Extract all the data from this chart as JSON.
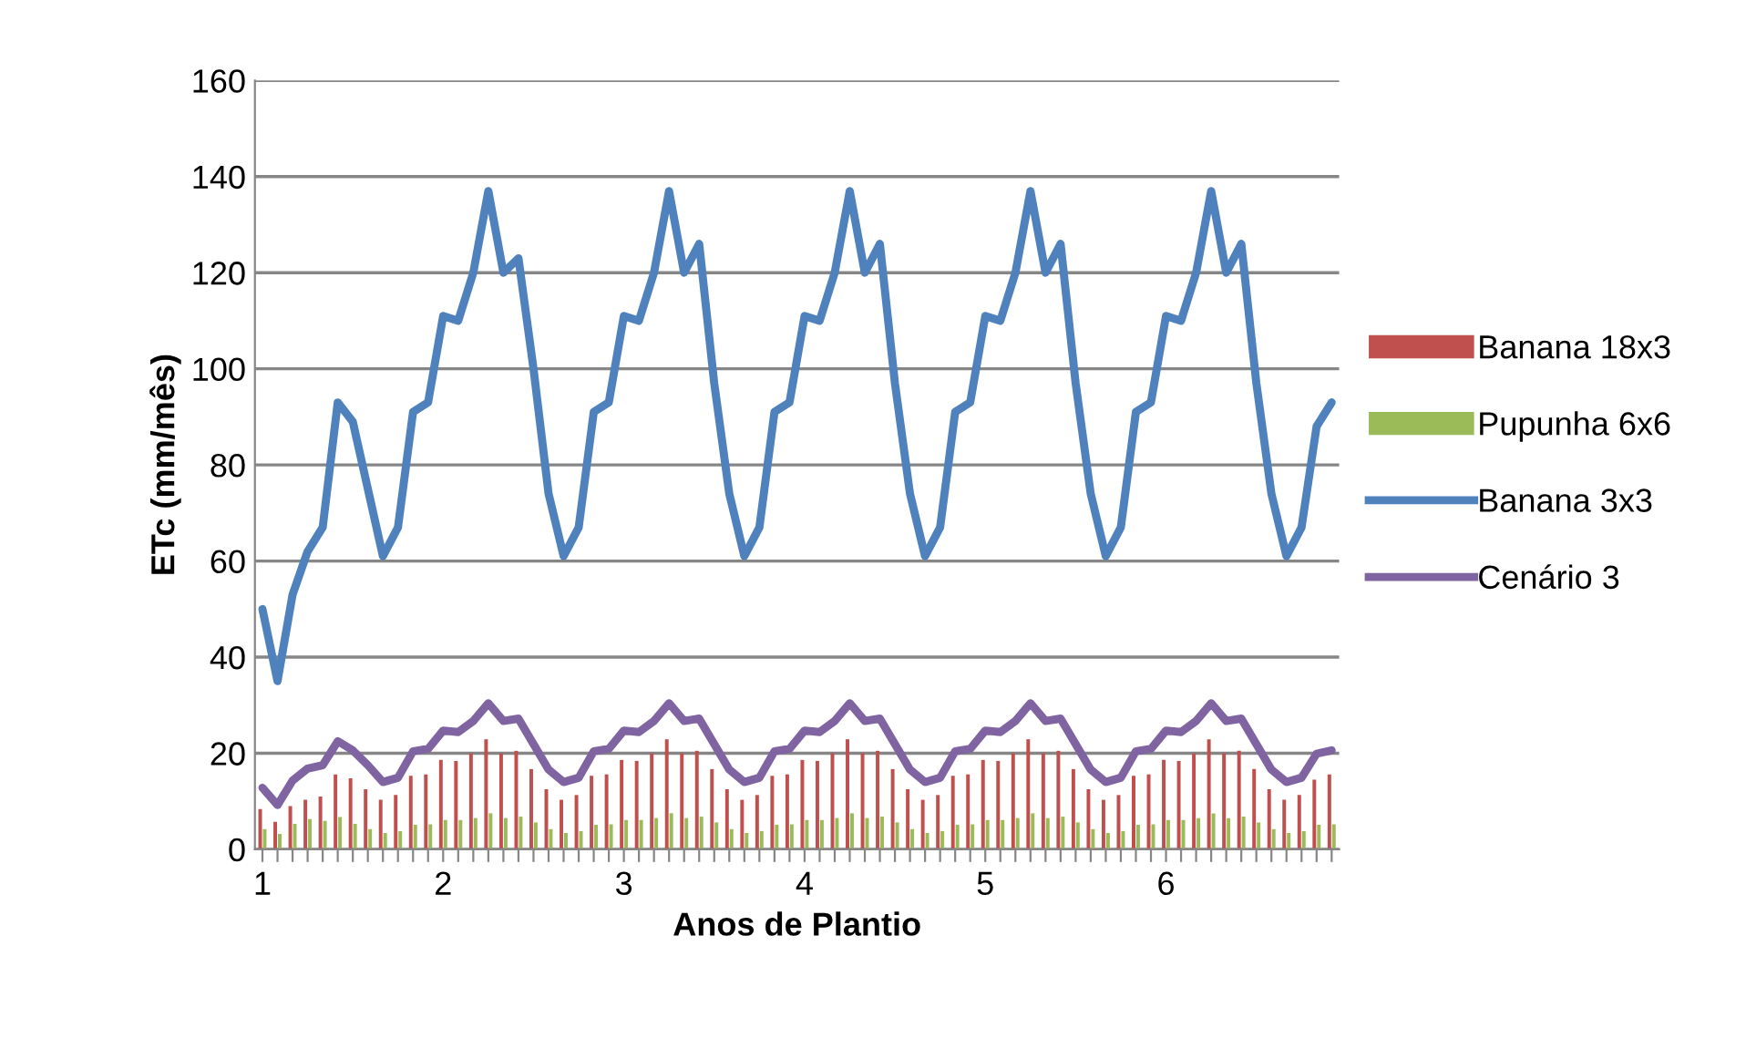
{
  "chart_data": {
    "type": "bar",
    "xlabel": "Anos de Plantio",
    "ylabel": "ETc (mm/mês)",
    "categories": [
      "1",
      null,
      null,
      null,
      null,
      null,
      null,
      null,
      null,
      null,
      null,
      null,
      "2",
      null,
      null,
      null,
      null,
      null,
      null,
      null,
      null,
      null,
      null,
      null,
      "3",
      null,
      null,
      null,
      null,
      null,
      null,
      null,
      null,
      null,
      null,
      null,
      "4",
      null,
      null,
      null,
      null,
      null,
      null,
      null,
      null,
      null,
      null,
      null,
      "5",
      null,
      null,
      null,
      null,
      null,
      null,
      null,
      null,
      null,
      null,
      null,
      "6",
      null,
      null,
      null,
      null,
      null,
      null,
      null,
      null,
      null,
      null,
      null
    ],
    "ylim": [
      0,
      160
    ],
    "yticks": [
      0,
      20,
      40,
      60,
      80,
      100,
      120,
      140,
      160
    ],
    "grid": "y",
    "legend": "right",
    "series": [
      {
        "name": "Banana 18x3",
        "color": "#c0504d",
        "values": [
          8.4,
          5.7,
          9,
          10.3,
          11,
          15.6,
          14.8,
          12.5,
          10.3,
          11.3,
          15.3,
          15.6,
          18.6,
          18.4,
          20,
          22.9,
          20,
          20.5,
          16.7,
          12.5,
          10.3,
          11.3,
          15.3,
          15.6,
          18.6,
          18.4,
          20,
          22.9,
          20,
          20.5,
          16.7,
          12.5,
          10.3,
          11.3,
          15.3,
          15.6,
          18.6,
          18.4,
          20,
          22.9,
          20,
          20.5,
          16.7,
          12.5,
          10.3,
          11.3,
          15.3,
          15.6,
          18.6,
          18.4,
          20,
          22.9,
          20,
          20.5,
          16.7,
          12.5,
          10.3,
          11.3,
          15.3,
          15.6,
          18.6,
          18.4,
          20,
          22.9,
          20,
          20.5,
          16.7,
          12.5,
          10.3,
          11.3,
          14.5,
          15.6
        ]
      },
      {
        "name": "Pupunha 6x6",
        "color": "#9bbb59",
        "values": [
          4.2,
          3.2,
          5.3,
          6.3,
          5.9,
          6.7,
          5.3,
          4.2,
          3.4,
          3.8,
          5.1,
          5.2,
          6.1,
          6.1,
          6.5,
          7.5,
          6.5,
          6.8,
          5.6,
          4.2,
          3.4,
          3.8,
          5.1,
          5.2,
          6.1,
          6.1,
          6.5,
          7.5,
          6.5,
          6.8,
          5.6,
          4.2,
          3.4,
          3.8,
          5.1,
          5.2,
          6.1,
          6.1,
          6.5,
          7.5,
          6.5,
          6.8,
          5.6,
          4.2,
          3.4,
          3.8,
          5.1,
          5.2,
          6.1,
          6.1,
          6.5,
          7.5,
          6.5,
          6.8,
          5.6,
          4.2,
          3.4,
          3.8,
          5.1,
          5.2,
          6.1,
          6.1,
          6.5,
          7.5,
          6.5,
          6.8,
          5.6,
          4.2,
          3.4,
          3.8,
          5.1,
          5.2
        ]
      },
      {
        "name": "Banana 3x3",
        "type": "line",
        "color": "#4f81bd",
        "values": [
          50,
          35,
          53,
          62,
          67,
          93,
          89,
          75,
          61,
          67,
          91,
          93,
          111,
          110,
          120,
          137,
          120,
          123,
          100,
          74,
          61,
          67,
          91,
          93,
          111,
          110,
          120,
          137,
          120,
          126,
          97,
          74,
          61,
          67,
          91,
          93,
          111,
          110,
          120,
          137,
          120,
          126,
          97,
          74,
          61,
          67,
          91,
          93,
          111,
          110,
          120,
          137,
          120,
          126,
          97,
          74,
          61,
          67,
          91,
          93,
          111,
          110,
          120,
          137,
          120,
          126,
          97,
          74,
          61,
          67,
          88,
          93
        ]
      },
      {
        "name": "Cenário 3",
        "type": "line",
        "color": "#8064a2",
        "values": [
          12.8,
          9.2,
          14.3,
          16.8,
          17.5,
          22.5,
          20.6,
          17.5,
          14,
          14.9,
          20.4,
          20.9,
          24.7,
          24.4,
          26.7,
          30.4,
          26.7,
          27.2,
          21.9,
          16.6,
          14,
          14.9,
          20.4,
          20.9,
          24.7,
          24.4,
          26.7,
          30.4,
          26.7,
          27.2,
          21.9,
          16.6,
          14,
          14.9,
          20.4,
          20.9,
          24.7,
          24.4,
          26.7,
          30.4,
          26.7,
          27.2,
          21.9,
          16.6,
          14,
          14.9,
          20.4,
          20.9,
          24.7,
          24.4,
          26.7,
          30.4,
          26.7,
          27.2,
          21.9,
          16.6,
          14,
          14.9,
          20.4,
          20.9,
          24.7,
          24.4,
          26.7,
          30.4,
          26.7,
          27.2,
          21.9,
          16.6,
          14,
          14.9,
          19.9,
          20.6
        ]
      }
    ]
  }
}
